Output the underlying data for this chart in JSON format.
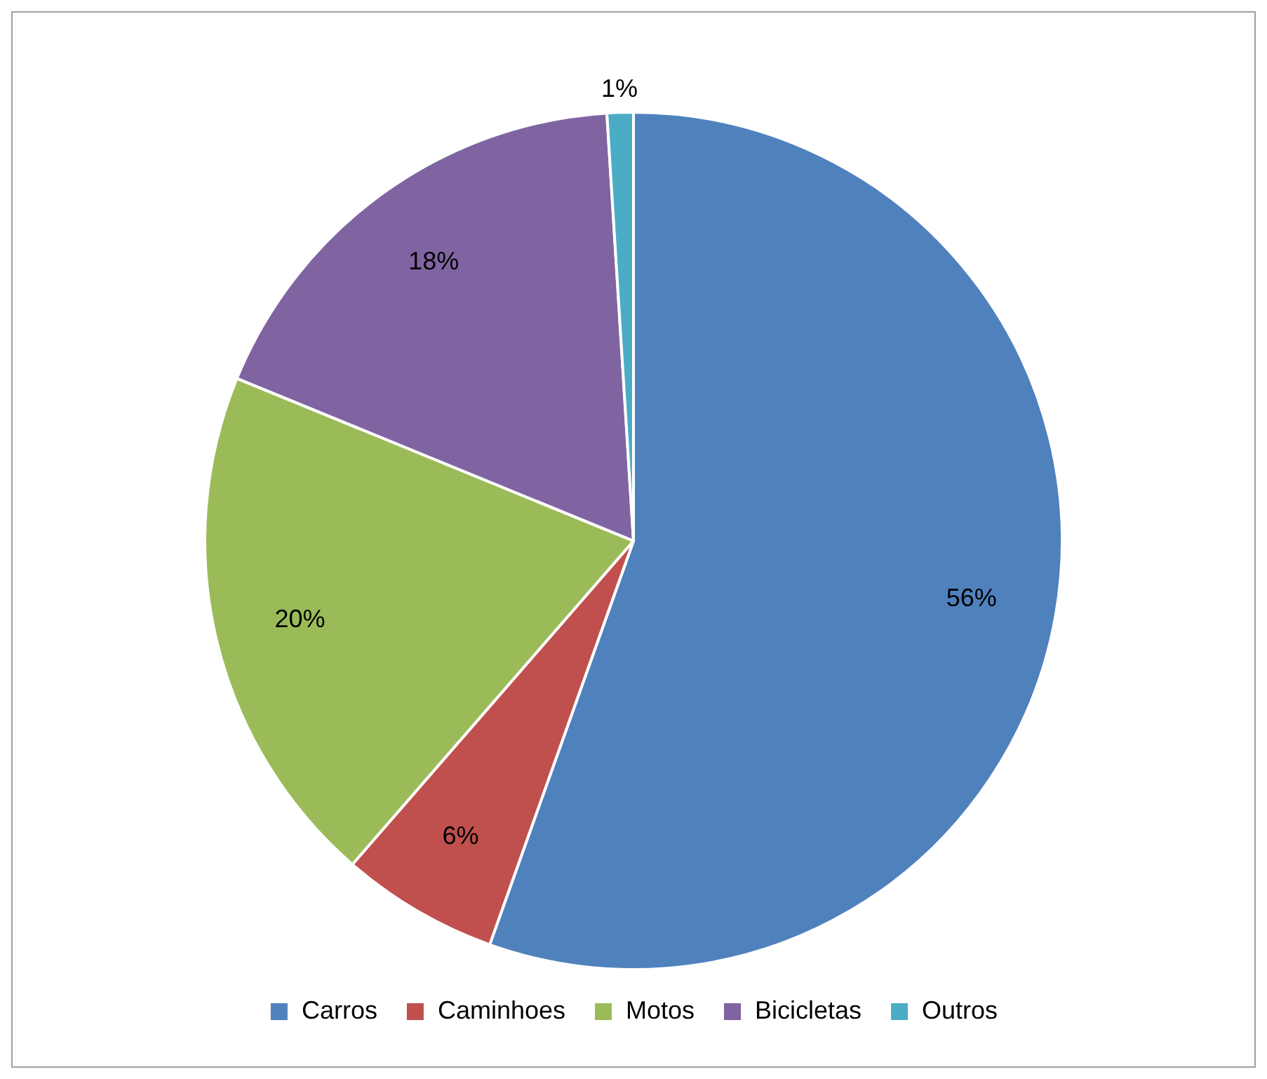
{
  "chart_data": {
    "type": "pie",
    "categories": [
      "Carros",
      "Caminhoes",
      "Motos",
      "Bicicletas",
      "Outros"
    ],
    "values": [
      56,
      6,
      20,
      18,
      1
    ],
    "value_labels": [
      "56%",
      "6%",
      "20%",
      "18%",
      "1%"
    ],
    "colors": [
      "#4f81bd",
      "#c0504d",
      "#9bbb59",
      "#8064a2",
      "#4bacc6"
    ],
    "legend": "bottom"
  }
}
